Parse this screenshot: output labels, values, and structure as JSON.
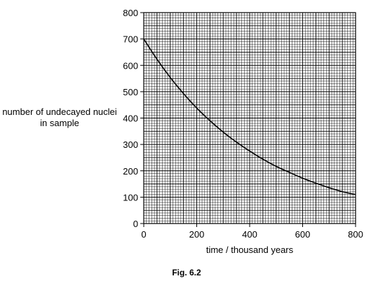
{
  "chart_data": {
    "type": "line",
    "xlabel": "time / thousand years",
    "ylabel": "number of undecayed nuclei in sample",
    "caption": "Fig. 6.2",
    "xlim": [
      0,
      800
    ],
    "ylim": [
      0,
      800
    ],
    "x_ticks": [
      0,
      200,
      400,
      600,
      800
    ],
    "y_ticks": [
      0,
      100,
      200,
      300,
      400,
      500,
      600,
      700,
      800
    ],
    "x_tick_labels": [
      "0",
      "200",
      "400",
      "600",
      "800"
    ],
    "y_tick_labels": [
      "0",
      "100",
      "200",
      "300",
      "400",
      "500",
      "600",
      "700",
      "800"
    ],
    "grid": true,
    "series": [
      {
        "x": [
          0,
          50,
          100,
          150,
          200,
          250,
          300,
          350,
          400,
          450,
          500,
          550,
          600,
          650,
          700,
          750,
          800
        ],
        "y": [
          700,
          623,
          554,
          493,
          438,
          390,
          347,
          309,
          275,
          244,
          217,
          194,
          172,
          153,
          136,
          121,
          110
        ],
        "color": "#000000"
      }
    ]
  }
}
